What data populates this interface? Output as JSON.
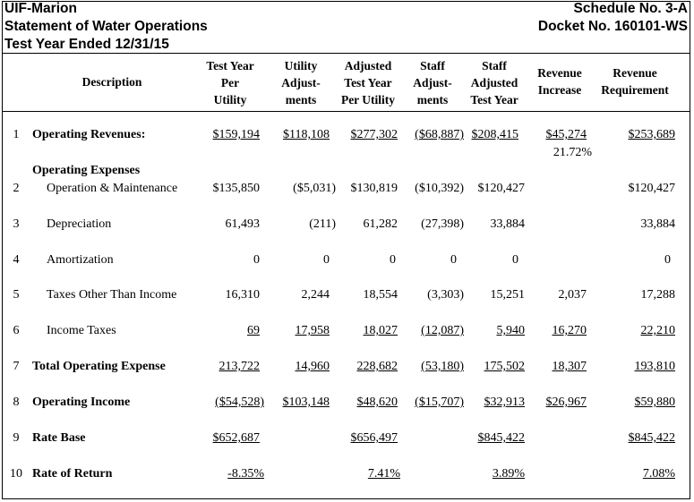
{
  "header": {
    "company": "UIF-Marion",
    "statement": "Statement of Water Operations",
    "test_year": "Test Year Ended 12/31/15",
    "schedule": "Schedule No. 3-A",
    "docket": "Docket No. 160101-WS"
  },
  "columns": {
    "description": "Description",
    "test_year": [
      "Test Year",
      "Per",
      "Utility"
    ],
    "utility_adj": [
      "Utility",
      "Adjust-",
      "ments"
    ],
    "adjusted": [
      "Adjusted",
      "Test Year",
      "Per Utility"
    ],
    "staff_adj": [
      "Staff",
      "Adjust-",
      "ments"
    ],
    "staff_adjusted": [
      "Staff",
      "Adjusted",
      "Test Year"
    ],
    "rev_increase": [
      "Revenue",
      "Increase"
    ],
    "rev_requirement": [
      "Revenue",
      "Requirement"
    ]
  },
  "rows": {
    "r1": {
      "num": "1",
      "label": "Operating Revenues:",
      "c1": "$159,194",
      "c2": "$118,108",
      "c3": "$277,302",
      "c4": "($68,887)",
      "c5": "$208,415",
      "c6": "$45,274",
      "c6b": "21.72%",
      "c7": "$253,689"
    },
    "section": {
      "label": "Operating Expenses"
    },
    "r2": {
      "num": "2",
      "label": "Operation & Maintenance",
      "c1": "$135,850",
      "c2": "($5,031)",
      "c3": "$130,819",
      "c4": "($10,392)",
      "c5": "$120,427",
      "c7": "$120,427"
    },
    "r3": {
      "num": "3",
      "label": "Depreciation",
      "c1": "61,493",
      "c2": "(211)",
      "c3": "61,282",
      "c4": "(27,398)",
      "c5": "33,884",
      "c7": "33,884"
    },
    "r4": {
      "num": "4",
      "label": "Amortization",
      "c1": "0",
      "c2": "0",
      "c3": "0",
      "c4": "0",
      "c5": "0",
      "c7": "0"
    },
    "r5": {
      "num": "5",
      "label": "Taxes Other Than Income",
      "c1": "16,310",
      "c2": "2,244",
      "c3": "18,554",
      "c4": "(3,303)",
      "c5": "15,251",
      "c6": "2,037",
      "c7": "17,288"
    },
    "r6": {
      "num": "6",
      "label": "Income Taxes",
      "c1": "69",
      "c2": "17,958",
      "c3": "18,027",
      "c4": "(12,087)",
      "c5": "5,940",
      "c6": "16,270",
      "c7": "22,210"
    },
    "r7": {
      "num": "7",
      "label": "Total Operating Expense",
      "c1": "213,722",
      "c2": "14,960",
      "c3": "228,682",
      "c4": "(53,180)",
      "c5": "175,502",
      "c6": "18,307",
      "c7": "193,810"
    },
    "r8": {
      "num": "8",
      "label": "Operating Income",
      "c1": "($54,528)",
      "c2": "$103,148",
      "c3": "$48,620",
      "c4": "($15,707)",
      "c5": "$32,913",
      "c6": "$26,967",
      "c7": "$59,880"
    },
    "r9": {
      "num": "9",
      "label": "Rate Base",
      "c1": "$652,687",
      "c3": "$656,497",
      "c5": "$845,422",
      "c7": "$845,422"
    },
    "r10": {
      "num": "10",
      "label": "Rate of Return",
      "c1": "-8.35%",
      "c3": "7.41%",
      "c5": "3.89%",
      "c7": "7.08%"
    }
  }
}
